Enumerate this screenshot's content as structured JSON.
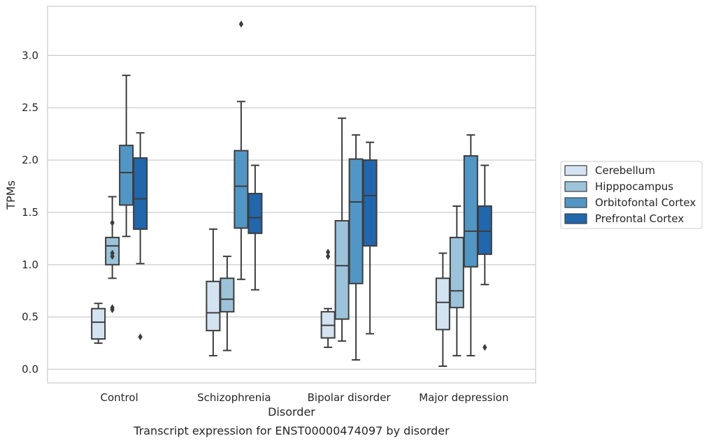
{
  "caption": "Transcript expression for ENST00000474097 by disorder",
  "chart_data": {
    "type": "box",
    "xlabel": "Disorder",
    "ylabel": "TPMs",
    "ylim": [
      -0.13,
      3.47
    ],
    "yticks": [
      "0.0",
      "0.5",
      "1.0",
      "1.5",
      "2.0",
      "2.5",
      "3.0"
    ],
    "grid": true,
    "legend_position": "right",
    "categories": [
      "Control",
      "Schizophrenia",
      "Bipolar disorder",
      "Major depression"
    ],
    "series": [
      {
        "name": "Cerebellum",
        "color": "#d4e3f2",
        "boxes": [
          {
            "whisker_low": 0.25,
            "q1": 0.29,
            "median": 0.45,
            "q3": 0.58,
            "whisker_high": 0.63,
            "outliers": []
          },
          {
            "whisker_low": 0.13,
            "q1": 0.37,
            "median": 0.54,
            "q3": 0.84,
            "whisker_high": 1.34,
            "outliers": []
          },
          {
            "whisker_low": 0.21,
            "q1": 0.3,
            "median": 0.42,
            "q3": 0.55,
            "whisker_high": 0.58,
            "outliers": [
              1.08,
              1.12
            ]
          },
          {
            "whisker_low": 0.03,
            "q1": 0.38,
            "median": 0.64,
            "q3": 0.87,
            "whisker_high": 1.11,
            "outliers": []
          }
        ]
      },
      {
        "name": "Hipppocampus",
        "color": "#9cc3da",
        "boxes": [
          {
            "whisker_low": 0.87,
            "q1": 1.0,
            "median": 1.18,
            "q3": 1.26,
            "whisker_high": 1.65,
            "outliers": [
              1.4,
              1.11,
              1.08,
              0.59,
              0.57
            ]
          },
          {
            "whisker_low": 0.18,
            "q1": 0.55,
            "median": 0.67,
            "q3": 0.87,
            "whisker_high": 1.08,
            "outliers": []
          },
          {
            "whisker_low": 0.27,
            "q1": 0.48,
            "median": 0.99,
            "q3": 1.42,
            "whisker_high": 2.4,
            "outliers": []
          },
          {
            "whisker_low": 0.13,
            "q1": 0.59,
            "median": 0.75,
            "q3": 1.26,
            "whisker_high": 1.56,
            "outliers": []
          }
        ]
      },
      {
        "name": "Orbitofontal Cortex",
        "color": "#5296c5",
        "boxes": [
          {
            "whisker_low": 1.27,
            "q1": 1.57,
            "median": 1.88,
            "q3": 2.14,
            "whisker_high": 2.81,
            "outliers": []
          },
          {
            "whisker_low": 0.86,
            "q1": 1.35,
            "median": 1.75,
            "q3": 2.09,
            "whisker_high": 2.56,
            "outliers": [
              3.3
            ]
          },
          {
            "whisker_low": 0.09,
            "q1": 0.82,
            "median": 1.6,
            "q3": 2.01,
            "whisker_high": 2.24,
            "outliers": []
          },
          {
            "whisker_low": 0.13,
            "q1": 0.98,
            "median": 1.32,
            "q3": 2.04,
            "whisker_high": 2.24,
            "outliers": []
          }
        ]
      },
      {
        "name": "Prefrontal Cortex",
        "color": "#2266ac",
        "boxes": [
          {
            "whisker_low": 1.01,
            "q1": 1.34,
            "median": 1.63,
            "q3": 2.02,
            "whisker_high": 2.26,
            "outliers": [
              0.31
            ]
          },
          {
            "whisker_low": 0.76,
            "q1": 1.3,
            "median": 1.45,
            "q3": 1.68,
            "whisker_high": 1.95,
            "outliers": []
          },
          {
            "whisker_low": 0.34,
            "q1": 1.18,
            "median": 1.66,
            "q3": 2.0,
            "whisker_high": 2.17,
            "outliers": []
          },
          {
            "whisker_low": 0.81,
            "q1": 1.1,
            "median": 1.32,
            "q3": 1.56,
            "whisker_high": 1.95,
            "outliers": [
              0.21
            ]
          }
        ]
      }
    ]
  }
}
